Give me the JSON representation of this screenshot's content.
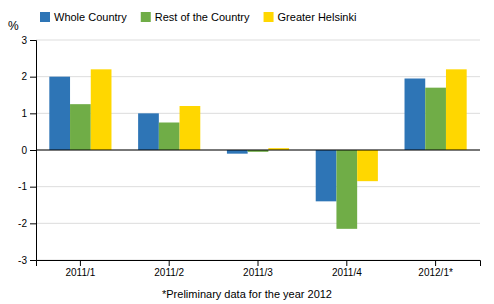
{
  "chart_data": {
    "type": "bar",
    "categories": [
      "2011/1",
      "2011/2",
      "2011/3",
      "2011/4",
      "2012/1*"
    ],
    "series": [
      {
        "name": "Whole Country",
        "color": "#2E75B6",
        "values": [
          2.0,
          1.0,
          -0.1,
          -1.4,
          1.95
        ]
      },
      {
        "name": "Rest of the Country",
        "color": "#70AD47",
        "values": [
          1.25,
          0.75,
          -0.05,
          -2.15,
          1.7
        ]
      },
      {
        "name": "Greater Helsinki",
        "color": "#FFD700",
        "values": [
          2.2,
          1.2,
          0.05,
          -0.85,
          2.2
        ]
      }
    ],
    "ylim": [
      -3,
      3
    ],
    "yticks": [
      -3,
      -2,
      -1,
      0,
      1,
      2,
      3
    ],
    "ylabel": "%",
    "annotation": "*Preliminary data for the year 2012",
    "grid": true,
    "legend": "upper-left"
  }
}
